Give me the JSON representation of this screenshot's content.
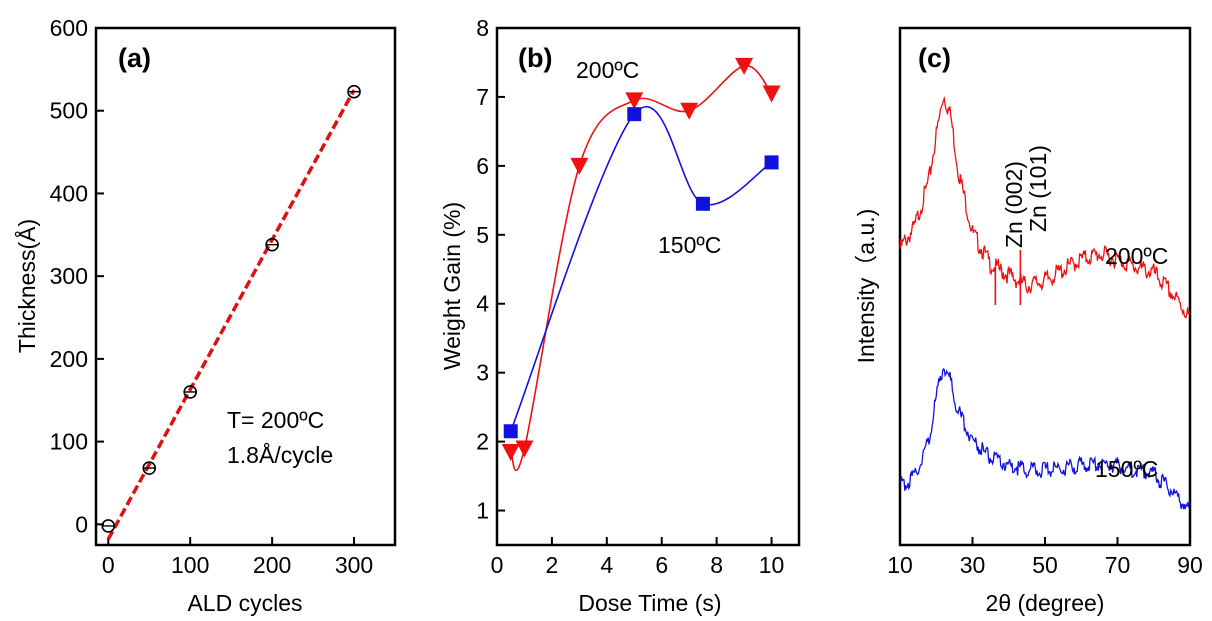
{
  "chart_data": [
    {
      "panel": "(a)",
      "type": "scatter",
      "xlabel": "ALD cycles",
      "ylabel": "Thickness(Å)",
      "xlim": [
        -15,
        350
      ],
      "ylim": [
        -25,
        600
      ],
      "xticks": [
        0,
        100,
        200,
        300
      ],
      "yticks": [
        0,
        100,
        200,
        300,
        400,
        500,
        600
      ],
      "series": [
        {
          "x": [
            0,
            50,
            100,
            200,
            300
          ],
          "y": [
            -2,
            68,
            160,
            338,
            523
          ],
          "marker": "open-circle"
        }
      ],
      "fit_line": {
        "x": [
          0,
          300
        ],
        "y": [
          -18,
          525
        ]
      },
      "annotations": [
        "T= 200ºC",
        "1.8Å/cycle"
      ]
    },
    {
      "panel": "(b)",
      "type": "line",
      "xlabel": "Dose Time (s)",
      "ylabel": "Weight Gain (%)",
      "xlim": [
        0,
        11
      ],
      "ylim": [
        0.5,
        8
      ],
      "xticks": [
        0,
        2,
        4,
        6,
        8,
        10
      ],
      "yticks": [
        1,
        2,
        3,
        4,
        5,
        6,
        7,
        8
      ],
      "series": [
        {
          "name": "200ºC",
          "x": [
            0.5,
            1,
            3,
            5,
            7,
            9,
            10
          ],
          "y": [
            1.85,
            1.9,
            6.0,
            6.95,
            6.8,
            7.45,
            7.05
          ],
          "marker": "down-triangle"
        },
        {
          "name": "150ºC",
          "x": [
            0.5,
            5,
            7.5,
            10
          ],
          "y": [
            2.15,
            6.75,
            5.45,
            6.05
          ],
          "marker": "square"
        }
      ]
    },
    {
      "panel": "(c)",
      "type": "line",
      "xlabel": "2θ (degree)",
      "ylabel": "Intensity（a.u.)",
      "xlim": [
        10,
        90
      ],
      "xticks": [
        10,
        30,
        50,
        70,
        90
      ],
      "series": [
        {
          "name": "200ºC",
          "x": [
            10,
            14,
            18,
            20,
            22,
            24,
            26,
            30,
            35,
            40,
            45,
            50,
            55,
            60,
            65,
            70,
            75,
            80,
            85,
            90
          ],
          "y": [
            0.42,
            0.5,
            0.68,
            0.85,
            1.0,
            0.92,
            0.72,
            0.48,
            0.36,
            0.32,
            0.28,
            0.3,
            0.34,
            0.38,
            0.4,
            0.38,
            0.35,
            0.33,
            0.25,
            0.16
          ]
        },
        {
          "name": "150ºC",
          "x": [
            10,
            14,
            18,
            20,
            22,
            24,
            26,
            30,
            35,
            40,
            45,
            50,
            55,
            60,
            65,
            70,
            75,
            80,
            85,
            90
          ],
          "y": [
            0.1,
            0.14,
            0.3,
            0.48,
            0.62,
            0.55,
            0.42,
            0.3,
            0.22,
            0.19,
            0.17,
            0.17,
            0.18,
            0.19,
            0.2,
            0.19,
            0.17,
            0.15,
            0.08,
            0.0
          ]
        }
      ],
      "peak_labels": [
        {
          "text": "Zn (002)",
          "x": 36.3
        },
        {
          "text": "Zn (101)",
          "x": 43.2
        }
      ]
    }
  ],
  "colors": {
    "red": "#ee1111",
    "blue": "#1111dd",
    "fit": "#dd1111",
    "axis": "#000000"
  }
}
